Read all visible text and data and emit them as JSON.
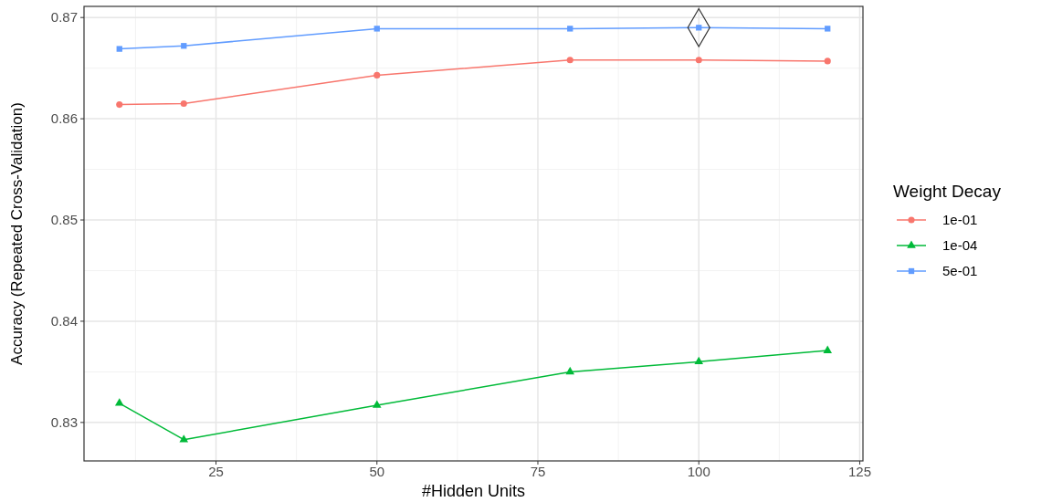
{
  "chart_data": {
    "type": "line",
    "xlabel": "#Hidden Units",
    "ylabel": "Accuracy (Repeated Cross-Validation)",
    "legend_title": "Weight Decay",
    "legend": "right",
    "grid": true,
    "xlim": [
      4.5,
      125.5
    ],
    "xticks": [
      25,
      50,
      75,
      100,
      125
    ],
    "ylim": [
      0.8262,
      0.8711
    ],
    "yticks": [
      0.83,
      0.84,
      0.85,
      0.86,
      0.87
    ],
    "series": [
      {
        "name": "1e-01",
        "color": "#f8766d",
        "marker": "circle",
        "x": [
          10,
          20,
          50,
          80,
          100,
          120
        ],
        "values": [
          0.8614,
          0.8615,
          0.8643,
          0.8658,
          0.8658,
          0.8657
        ]
      },
      {
        "name": "1e-04",
        "color": "#00ba38",
        "marker": "triangle",
        "x": [
          10,
          20,
          50,
          80,
          100,
          120
        ],
        "values": [
          0.8319,
          0.8283,
          0.8317,
          0.835,
          0.836,
          0.8371
        ]
      },
      {
        "name": "5e-01",
        "color": "#619cff",
        "marker": "square",
        "x": [
          10,
          20,
          50,
          80,
          100,
          120
        ],
        "values": [
          0.8669,
          0.8672,
          0.8689,
          0.8689,
          0.869,
          0.8689
        ]
      },
      {
        "type": "scatter",
        "color": "#333333",
        "marker": "diamond",
        "x": [
          100
        ],
        "values": [
          0.869
        ]
      }
    ]
  }
}
